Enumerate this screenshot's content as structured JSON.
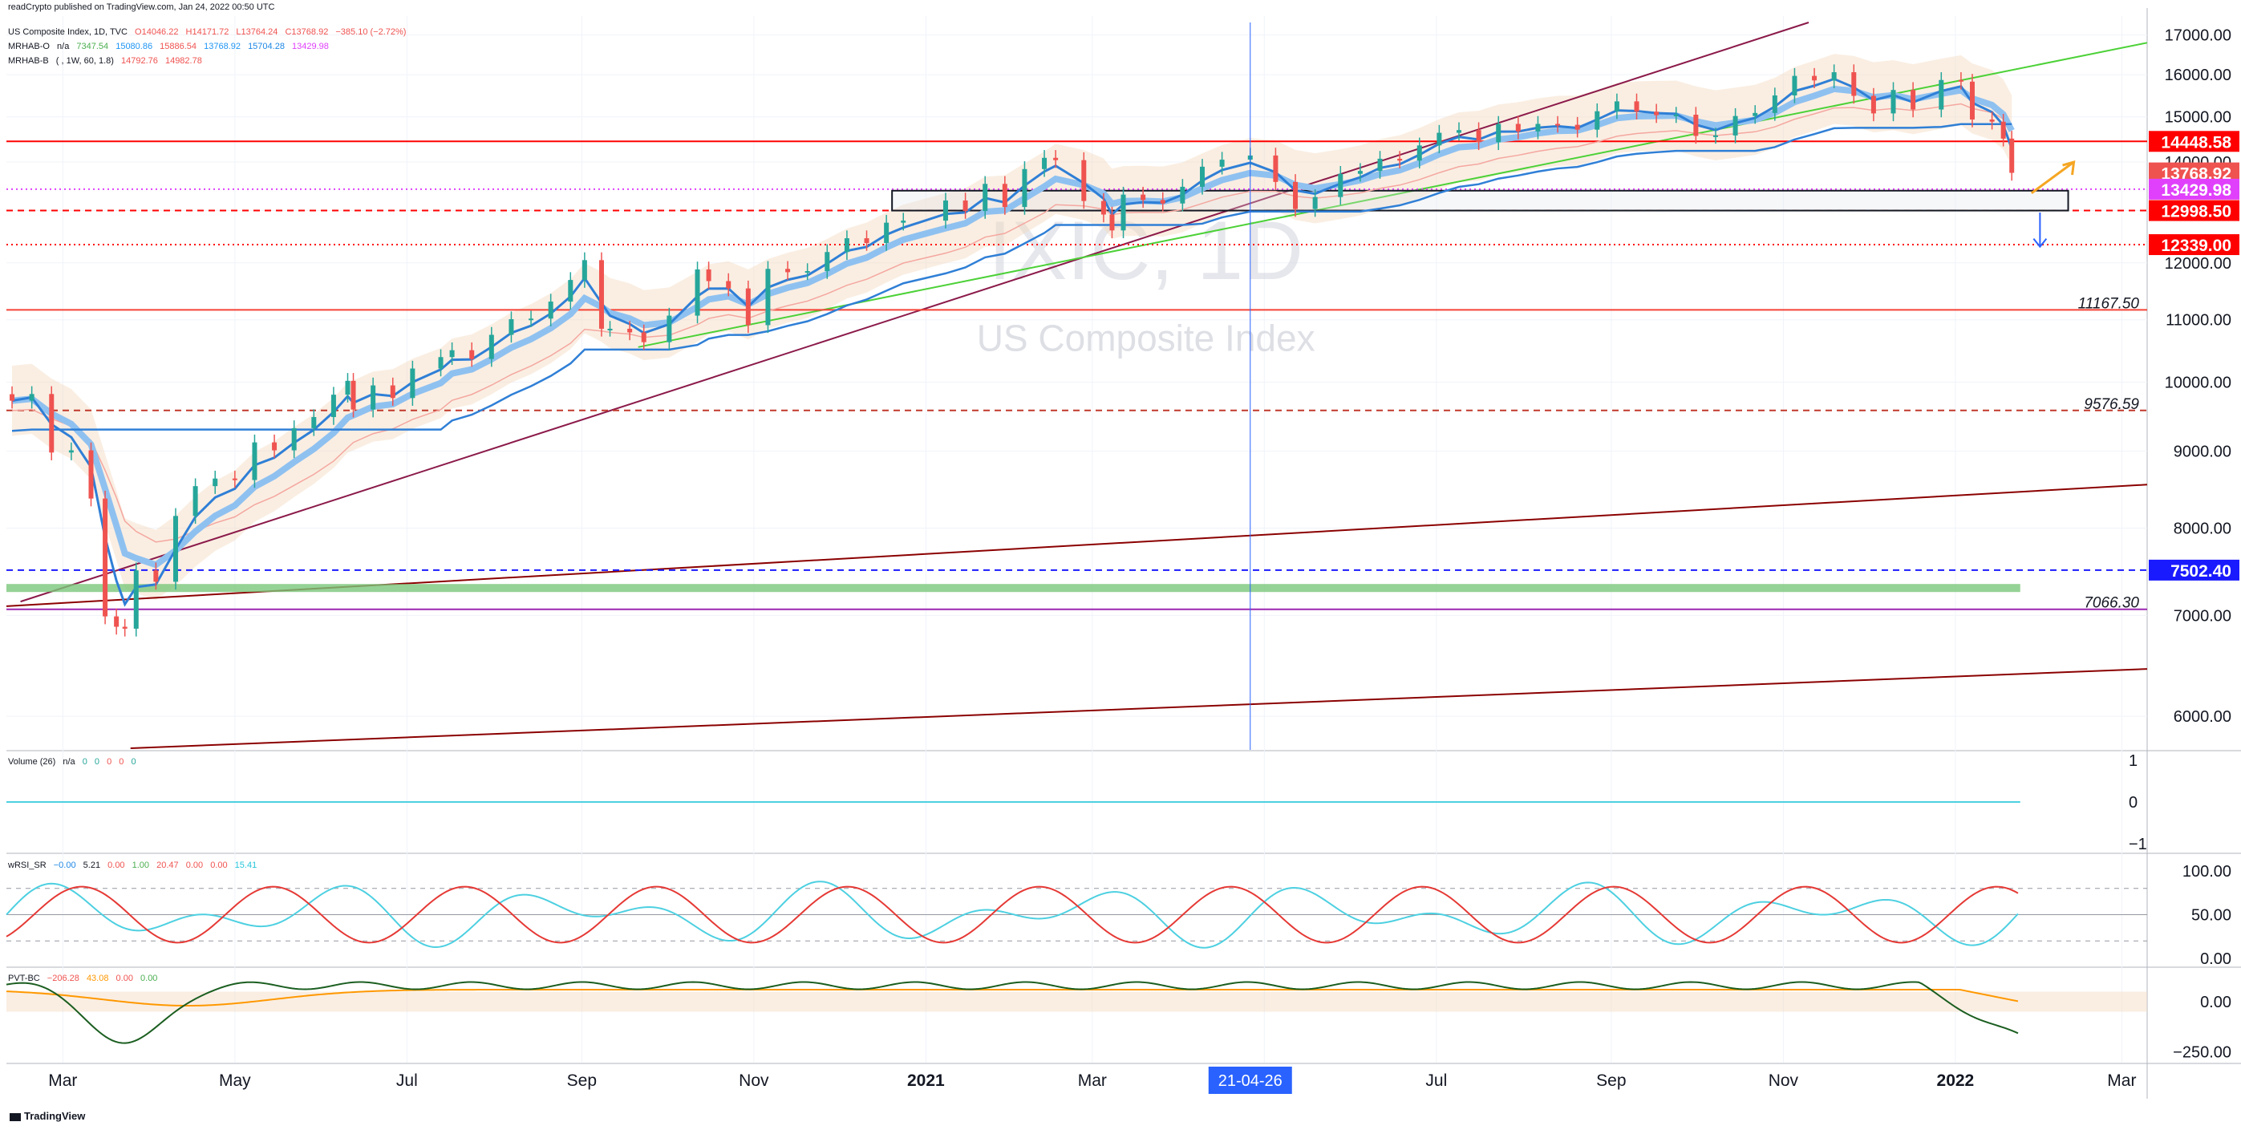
{
  "header": {
    "published": "readCrypto published on TradingView.com, Jan 24, 2022 00:50 UTC",
    "symbol_line": "US Composite Index, 1D, TVC",
    "ohlc": [
      "O14046.22",
      "H14171.72",
      "L13764.24",
      "C13768.92",
      "−385.10 (−2.72%)"
    ],
    "mrhab_o": {
      "label": "MRHAB-O",
      "values": [
        "n/a",
        "7347.54",
        "15080.86",
        "15886.54",
        "13768.92",
        "15704.28",
        "13429.98"
      ]
    },
    "mrhab_b": {
      "label": "MRHAB-B",
      "params": "( , 1W, 60, 1.8)",
      "values": [
        "14792.76",
        "14982.78"
      ]
    }
  },
  "watermark": {
    "symbol": "IXIC, 1D",
    "name": "US Composite Index"
  },
  "colors": {
    "up": "#26a69a",
    "down": "#ef5350",
    "accent_blue": "#2962ff",
    "red_badge": "#ff0000",
    "pink_badge": "#e040fb",
    "navy_badge": "#1a1aff",
    "trend_maroon": "#8b1a4a",
    "trend_green": "#4cd137",
    "trend_darkred": "#8b0000"
  },
  "chart_data": [
    {
      "type": "candlestick",
      "title": "IXIC, 1D",
      "yscale": "log",
      "ylim": [
        5700,
        17500
      ],
      "xlim": [
        "2020-02-10",
        "2022-03-10"
      ],
      "yticks": [
        17000,
        16000,
        15000,
        14000,
        13000,
        12000,
        11000,
        10000,
        9000,
        8000,
        7000,
        6000
      ],
      "ytick_labels": [
        "17000.00",
        "16000.00",
        "15000.00",
        "14000.00",
        "13000.00",
        "12000.00",
        "11000.00",
        "10000.00",
        "9000.00",
        "8000.00",
        "7000.00",
        "6000.00"
      ],
      "xticks": [
        "2020-03-01",
        "2020-05-01",
        "2020-07-01",
        "2020-09-01",
        "2020-11-01",
        "2021-01-01",
        "2021-03-01",
        "2021-05-01",
        "2021-07-01",
        "2021-09-01",
        "2021-11-01",
        "2022-01-01",
        "2022-03-01"
      ],
      "xtick_labels": [
        "Mar",
        "May",
        "Jul",
        "Sep",
        "Nov",
        "2021",
        "Mar",
        "",
        "Jul",
        "Sep",
        "Nov",
        "2022",
        "Mar"
      ],
      "cursor": {
        "x": "2021-04-26",
        "label": "21-04-26"
      },
      "series": [
        {
          "name": "close",
          "x": [
            "2020-02-12",
            "2020-02-19",
            "2020-02-26",
            "2020-03-04",
            "2020-03-11",
            "2020-03-16",
            "2020-03-20",
            "2020-03-23",
            "2020-03-27",
            "2020-04-03",
            "2020-04-10",
            "2020-04-17",
            "2020-04-24",
            "2020-05-01",
            "2020-05-08",
            "2020-05-15",
            "2020-05-22",
            "2020-05-29",
            "2020-06-05",
            "2020-06-10",
            "2020-06-12",
            "2020-06-19",
            "2020-06-26",
            "2020-07-03",
            "2020-07-13",
            "2020-07-17",
            "2020-07-24",
            "2020-07-31",
            "2020-08-07",
            "2020-08-14",
            "2020-08-21",
            "2020-08-28",
            "2020-09-02",
            "2020-09-08",
            "2020-09-11",
            "2020-09-18",
            "2020-09-23",
            "2020-10-02",
            "2020-10-12",
            "2020-10-16",
            "2020-10-23",
            "2020-10-30",
            "2020-11-06",
            "2020-11-13",
            "2020-11-20",
            "2020-11-27",
            "2020-12-04",
            "2020-12-11",
            "2020-12-18",
            "2020-12-24",
            "2021-01-08",
            "2021-01-15",
            "2021-01-22",
            "2021-01-29",
            "2021-02-05",
            "2021-02-12",
            "2021-02-16",
            "2021-02-26",
            "2021-03-05",
            "2021-03-08",
            "2021-03-12",
            "2021-03-19",
            "2021-03-26",
            "2021-04-02",
            "2021-04-09",
            "2021-04-16",
            "2021-04-26",
            "2021-05-05",
            "2021-05-12",
            "2021-05-19",
            "2021-05-28",
            "2021-06-04",
            "2021-06-11",
            "2021-06-18",
            "2021-06-25",
            "2021-07-02",
            "2021-07-09",
            "2021-07-16",
            "2021-07-23",
            "2021-07-30",
            "2021-08-06",
            "2021-08-13",
            "2021-08-20",
            "2021-08-27",
            "2021-09-03",
            "2021-09-10",
            "2021-09-17",
            "2021-09-24",
            "2021-10-01",
            "2021-10-08",
            "2021-10-15",
            "2021-10-22",
            "2021-10-29",
            "2021-11-05",
            "2021-11-12",
            "2021-11-19",
            "2021-11-26",
            "2021-12-03",
            "2021-12-10",
            "2021-12-17",
            "2021-12-27",
            "2022-01-03",
            "2022-01-07",
            "2022-01-14",
            "2022-01-18",
            "2022-01-21"
          ],
          "values": [
            9720,
            9820,
            8980,
            9010,
            8370,
            6990,
            6880,
            6860,
            7500,
            7370,
            8150,
            8530,
            8630,
            8610,
            9120,
            9010,
            9320,
            9480,
            9810,
            10020,
            9590,
            9950,
            9760,
            10210,
            10390,
            10500,
            10360,
            10750,
            11010,
            11020,
            11310,
            11690,
            12050,
            10850,
            10850,
            10790,
            10630,
            11070,
            11880,
            11670,
            11540,
            10910,
            11890,
            11830,
            11850,
            12200,
            12460,
            12370,
            12760,
            12800,
            13200,
            12990,
            13540,
            13070,
            13850,
            14090,
            14040,
            13190,
            12920,
            12610,
            13320,
            13210,
            13140,
            13480,
            13900,
            14050,
            14140,
            13580,
            13030,
            13270,
            13750,
            13810,
            14070,
            14030,
            14360,
            14640,
            14700,
            14430,
            14840,
            14670,
            14840,
            14820,
            14710,
            15130,
            15360,
            15120,
            15040,
            15050,
            14570,
            14580,
            15020,
            15090,
            15500,
            15970,
            15860,
            16060,
            15490,
            15080,
            15630,
            15170,
            15870,
            15830,
            14940,
            14890,
            14510,
            13770
          ]
        }
      ]
    },
    {
      "type": "line",
      "title": "Volume (26)",
      "legend": [
        "n/a",
        "0",
        "0",
        "0",
        "0",
        "0"
      ],
      "yticks": [
        1,
        0,
        -1
      ],
      "ytick_labels": [
        "1",
        "0",
        "−1"
      ]
    },
    {
      "type": "line",
      "title": "wRSI_SR",
      "legend": [
        "−0.00",
        "5.21",
        "0.00",
        "1.00",
        "20.47",
        "0.00",
        "0.00",
        "15.41"
      ],
      "yticks": [
        100,
        50,
        0
      ],
      "ytick_labels": [
        "100.00",
        "50.00",
        "0.00"
      ],
      "ylim": [
        0,
        100
      ]
    },
    {
      "type": "line",
      "title": "PVT-BC",
      "legend": [
        "−206.28",
        "43.08",
        "0.00",
        "0.00"
      ],
      "yticks": [
        0,
        -250
      ],
      "ytick_labels": [
        "0.00",
        "−250.00"
      ],
      "ylim": [
        -280,
        140
      ]
    }
  ],
  "price_levels": [
    {
      "value": 14448.58,
      "label": "14448.58",
      "color": "#ff0000",
      "style": "solid",
      "badge": true
    },
    {
      "value": 13768.92,
      "label": "13768.92",
      "color": "#ef5350",
      "style": "none",
      "badge": true
    },
    {
      "value": 13429.98,
      "label": "13429.98",
      "color": "#e040fb",
      "style": "dotted",
      "badge": true
    },
    {
      "value": 12998.5,
      "label": "12998.50",
      "color": "#ff0000",
      "style": "dashed",
      "badge": true
    },
    {
      "value": 12339.0,
      "label": "12339.00",
      "color": "#ff0000",
      "style": "dotted",
      "badge": true
    },
    {
      "value": 11167.5,
      "label": "11167.50",
      "color": "#f44336",
      "style": "solid",
      "badge": false
    },
    {
      "value": 9576.59,
      "label": "9576.59",
      "color": "#c0392b",
      "style": "dashed",
      "badge": false
    },
    {
      "value": 7502.4,
      "label": "7502.40",
      "color": "#1a1aff",
      "style": "dashed",
      "badge": true
    },
    {
      "value": 7066.3,
      "label": "7066.30",
      "color": "#9c27b0",
      "style": "solid",
      "badge": false
    }
  ],
  "footer": {
    "brand": "TradingView"
  }
}
